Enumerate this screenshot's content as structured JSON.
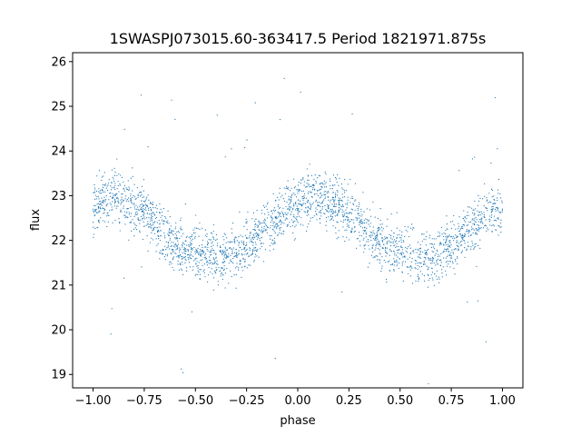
{
  "chart_data": {
    "type": "scatter",
    "title": "1SWASPJ073015.60-363417.5 Period 1821971.875s",
    "xlabel": "phase",
    "ylabel": "flux",
    "xlim": [
      -1.1,
      1.1
    ],
    "ylim": [
      18.7,
      26.2
    ],
    "xticks": [
      -1.0,
      -0.75,
      -0.5,
      -0.25,
      0.0,
      0.25,
      0.5,
      0.75,
      1.0
    ],
    "xtick_labels": [
      "−1.00",
      "−0.75",
      "−0.50",
      "−0.25",
      "0.00",
      "0.25",
      "0.50",
      "0.75",
      "1.00"
    ],
    "yticks": [
      19,
      20,
      21,
      22,
      23,
      24,
      25,
      26
    ],
    "ytick_labels": [
      "19",
      "20",
      "21",
      "22",
      "23",
      "24",
      "25",
      "26"
    ],
    "grid": false,
    "legend": "none",
    "marker_color": "#1f77b4",
    "marker_size": 0.6,
    "series": [
      {
        "x": [
          -1.0,
          -0.95,
          -0.9,
          -0.85,
          -0.8,
          -0.75,
          -0.7,
          -0.65,
          -0.6,
          -0.55,
          -0.5,
          -0.45,
          -0.4,
          -0.35,
          -0.3,
          -0.25,
          -0.2,
          -0.15,
          -0.1,
          -0.05,
          0.0,
          0.05,
          0.1,
          0.15,
          0.2,
          0.25,
          0.3,
          0.35,
          0.4,
          0.45,
          0.5,
          0.55,
          0.6,
          0.65,
          0.7,
          0.75,
          0.8,
          0.85,
          0.9,
          0.95,
          1.0
        ],
        "y": [
          22.7,
          22.9,
          23.0,
          22.9,
          22.8,
          22.6,
          22.4,
          22.1,
          21.9,
          21.8,
          21.7,
          21.7,
          21.6,
          21.6,
          21.7,
          21.9,
          22.1,
          22.3,
          22.5,
          22.7,
          22.7,
          22.9,
          23.0,
          22.9,
          22.8,
          22.6,
          22.4,
          22.1,
          21.9,
          21.8,
          21.7,
          21.7,
          21.6,
          21.6,
          21.7,
          21.9,
          22.1,
          22.3,
          22.5,
          22.7,
          22.7
        ]
      }
    ]
  }
}
